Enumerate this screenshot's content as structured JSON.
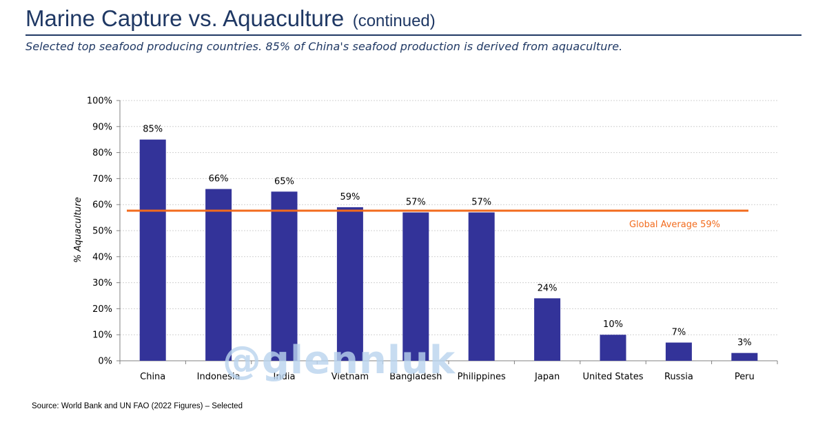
{
  "header": {
    "title": "Marine Capture vs. Aquaculture",
    "title_suffix": "(continued)",
    "subtitle": "Selected top seafood producing countries.  85% of China's seafood production is derived from aquaculture."
  },
  "footer": {
    "source": "Source: World Bank and UN FAO (2022 Figures) – Selected"
  },
  "watermark": "@glennluk",
  "chart_data": {
    "type": "bar",
    "ylabel": "% Aquaculture",
    "xlabel": "",
    "ylim": [
      0,
      100
    ],
    "y_ticks": [
      0,
      10,
      20,
      30,
      40,
      50,
      60,
      70,
      80,
      90,
      100
    ],
    "y_tick_labels": [
      "0%",
      "10%",
      "20%",
      "30%",
      "40%",
      "50%",
      "60%",
      "70%",
      "80%",
      "90%",
      "100%"
    ],
    "categories": [
      "China",
      "Indonesia",
      "India",
      "Vietnam",
      "Bangladesh",
      "Philippines",
      "Japan",
      "United States",
      "Russia",
      "Peru"
    ],
    "values": [
      85,
      66,
      65,
      59,
      57,
      57,
      24,
      10,
      7,
      3
    ],
    "data_labels": [
      "85%",
      "66%",
      "65%",
      "59%",
      "57%",
      "57%",
      "24%",
      "10%",
      "7%",
      "3%"
    ],
    "grid": true,
    "reference_line": {
      "value": 59,
      "label": "Global Average 59%"
    },
    "colors": {
      "bar": "#333399",
      "reference_line": "#F26B1D",
      "reference_label": "#F26B1D",
      "title": "#1F3864",
      "watermark": "#B9D3EE"
    }
  }
}
